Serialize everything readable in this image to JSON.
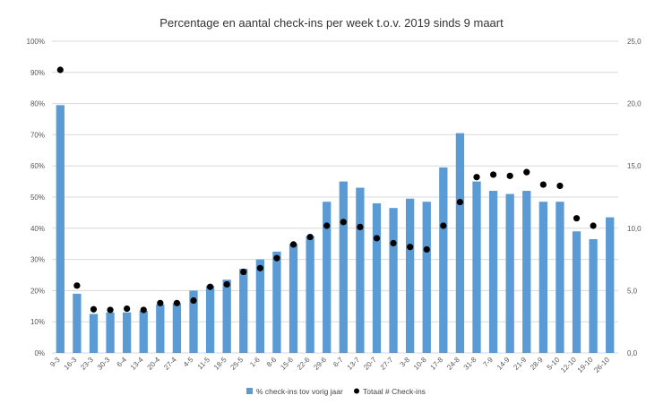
{
  "chart_data": {
    "type": "bar",
    "title": "Percentage en aantal check-ins per week t.o.v. 2019 sinds 9 maart",
    "categories": [
      "9-3",
      "16-3",
      "23-3",
      "30-3",
      "6-4",
      "13-4",
      "20-4",
      "27-4",
      "4-5",
      "11-5",
      "18-5",
      "25-5",
      "1-6",
      "8-6",
      "15-6",
      "22-6",
      "29-6",
      "6-7",
      "13-7",
      "20-7",
      "27-7",
      "3-8",
      "10-8",
      "17-8",
      "24-8",
      "31-8",
      "7-9",
      "14-9",
      "21-9",
      "28-9",
      "5-10",
      "12-10",
      "19-10",
      "26-10"
    ],
    "series": [
      {
        "name": "% check-ins tov vorig jaar",
        "axis": "left",
        "kind": "bar",
        "color": "#5b9bd5",
        "values": [
          79.5,
          19,
          12.5,
          13,
          13,
          13.5,
          15.5,
          16,
          20,
          21.5,
          23.5,
          27,
          30,
          32.5,
          35,
          37.5,
          48.5,
          55,
          53,
          48,
          46.5,
          49.5,
          48.5,
          59.5,
          70.5,
          55,
          52,
          51,
          52,
          48.5,
          48.5,
          39,
          36.5,
          43.5
        ]
      },
      {
        "name": "Totaal # Check-ins",
        "axis": "right",
        "kind": "scatter",
        "color": "#000000",
        "values": [
          22.7,
          5.4,
          3.5,
          3.45,
          3.55,
          3.45,
          4.0,
          4.0,
          4.2,
          5.3,
          5.5,
          6.5,
          6.8,
          7.6,
          8.7,
          9.3,
          10.2,
          10.5,
          10.1,
          9.2,
          8.8,
          8.5,
          8.3,
          10.2,
          12.1,
          14.1,
          14.3,
          14.2,
          14.5,
          13.5,
          13.4,
          10.8,
          10.2,
          null
        ]
      }
    ],
    "y_left": {
      "min": 0,
      "max": 100,
      "ticks": [
        "0%",
        "10%",
        "20%",
        "30%",
        "40%",
        "50%",
        "60%",
        "70%",
        "80%",
        "90%",
        "100%"
      ]
    },
    "y_right": {
      "min": 0,
      "max": 25,
      "ticks": [
        "0,0",
        "5,0",
        "10,0",
        "15,0",
        "20,0",
        "25,0"
      ]
    },
    "grid": true,
    "legend_position": "bottom"
  }
}
